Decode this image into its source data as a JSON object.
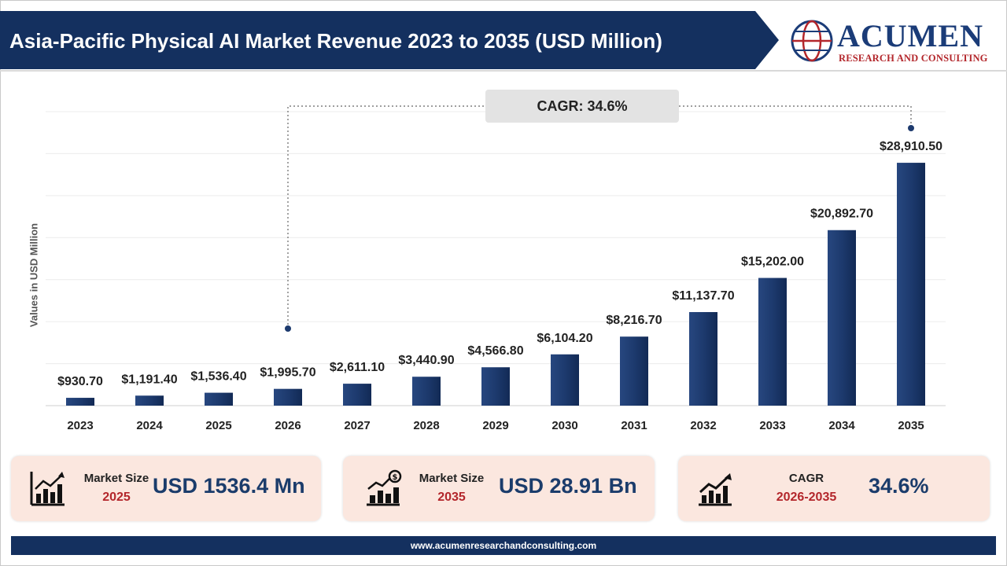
{
  "header": {
    "title": "Asia-Pacific Physical AI Market Revenue 2023 to 2035 (USD Million)",
    "logo_word": "ACUMEN",
    "logo_sub": "RESEARCH AND CONSULTING"
  },
  "chart_data": {
    "type": "bar",
    "title": "Asia-Pacific Physical AI Market Revenue 2023 to 2035 (USD Million)",
    "ylabel": "Values in USD Million",
    "xlabel": "",
    "categories": [
      "2023",
      "2024",
      "2025",
      "2026",
      "2027",
      "2028",
      "2029",
      "2030",
      "2031",
      "2032",
      "2033",
      "2034",
      "2035"
    ],
    "values": [
      930.7,
      1191.4,
      1536.4,
      1995.7,
      2611.1,
      3440.9,
      4566.8,
      6104.2,
      8216.7,
      11137.7,
      15202.0,
      20892.7,
      28910.5
    ],
    "labels": [
      "$930.70",
      "$1,191.40",
      "$1,536.40",
      "$1,995.70",
      "$2,611.10",
      "$3,440.90",
      "$4,566.80",
      "$6,104.20",
      "$8,216.70",
      "$11,137.70",
      "$15,202.00",
      "$20,892.70",
      "$28,910.50"
    ],
    "ylim": [
      0,
      35000
    ],
    "grid": true,
    "annotation": "CAGR: 34.6%",
    "bar_color": "#1d3a6e"
  },
  "stats": [
    {
      "label": "Market Size",
      "year": "2025",
      "value": "USD 1536.4 Mn",
      "icon": "bar-chart-growth-icon"
    },
    {
      "label": "Market Size",
      "year": "2035",
      "value": "USD 28.91 Bn",
      "icon": "money-growth-chart-icon"
    },
    {
      "label": "CAGR",
      "year": "2026-2035",
      "value": "34.6%",
      "icon": "trend-up-chart-icon"
    }
  ],
  "footer": {
    "url": "www.acumenresearchandconsulting.com"
  }
}
